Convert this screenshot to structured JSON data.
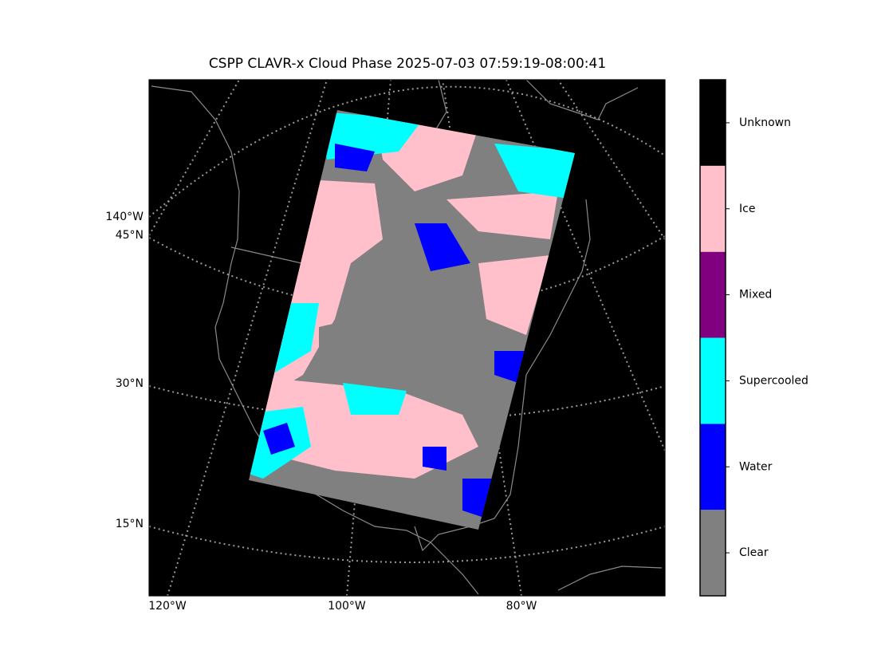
{
  "title": "CSPP CLAVR-x Cloud Phase 2025-07-03 07:59:19-08:00:41",
  "map": {
    "left_labels": [
      "140°W",
      "45°N",
      "30°N",
      "15°N"
    ],
    "bottom_labels": [
      "120°W",
      "100°W",
      "80°W"
    ]
  },
  "colorbar": {
    "categories": [
      {
        "label": "Clear",
        "color": "#808080"
      },
      {
        "label": "Water",
        "color": "#0000ff"
      },
      {
        "label": "Supercooled",
        "color": "#00ffff"
      },
      {
        "label": "Mixed",
        "color": "#800080"
      },
      {
        "label": "Ice",
        "color": "#ffc0cb"
      },
      {
        "label": "Unknown",
        "color": "#000000"
      }
    ]
  }
}
